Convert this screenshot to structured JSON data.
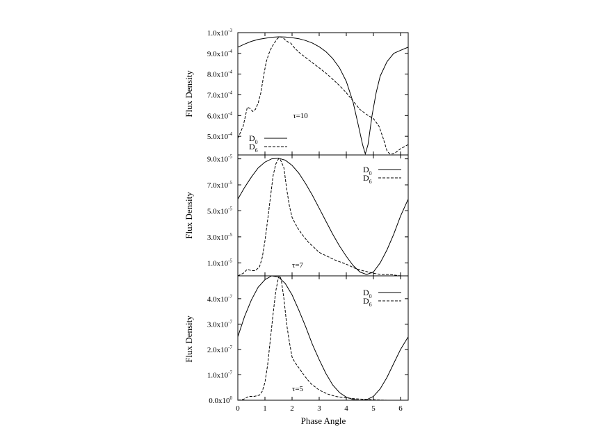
{
  "chart_data": {
    "type": "line",
    "xlabel": "Phase Angle",
    "xlim": [
      0,
      6.283
    ],
    "xticks": [
      "0",
      "1",
      "2",
      "3",
      "4",
      "5",
      "6"
    ],
    "legend": {
      "placement_top_panel": "bottom-left",
      "placement_other_panels": "top-right"
    },
    "series_styles": {
      "D0": "solid",
      "D6": "dashed"
    },
    "panels": [
      {
        "annotation": "τ=10",
        "ylabel": "Flux Density",
        "ylim": [
          0.00041,
          0.001
        ],
        "yticks": [
          {
            "value": 0.0005,
            "mant": "5.0x10",
            "exp": "-4"
          },
          {
            "value": 0.0006,
            "mant": "6.0x10",
            "exp": "-4"
          },
          {
            "value": 0.0007,
            "mant": "7.0x10",
            "exp": "-4"
          },
          {
            "value": 0.0008,
            "mant": "8.0x10",
            "exp": "-4"
          },
          {
            "value": 0.0009,
            "mant": "9.0x10",
            "exp": "-4"
          },
          {
            "value": 0.001,
            "mant": "1.0x10",
            "exp": "-3"
          }
        ],
        "series": [
          {
            "name": "D0",
            "legend_main": "D",
            "legend_sub": "0",
            "x": [
              0,
              0.25,
              0.5,
              0.75,
              1.0,
              1.25,
              1.5,
              1.75,
              2.0,
              2.25,
              2.5,
              2.75,
              3.0,
              3.25,
              3.5,
              3.75,
              4.0,
              4.25,
              4.45,
              4.6,
              4.7,
              4.8,
              4.95,
              5.1,
              5.25,
              5.5,
              5.75,
              6.0,
              6.283
            ],
            "y": [
              0.00093,
              0.000945,
              0.000958,
              0.000967,
              0.000973,
              0.000978,
              0.00098,
              0.000979,
              0.000976,
              0.000971,
              0.000962,
              0.00095,
              0.000932,
              0.000908,
              0.000875,
              0.00083,
              0.000765,
              0.000665,
              0.00055,
              0.00046,
              0.000415,
              0.00046,
              0.0006,
              0.00071,
              0.00079,
              0.00086,
              0.0009,
              0.000915,
              0.00093
            ]
          },
          {
            "name": "D6",
            "legend_main": "D",
            "legend_sub": "6",
            "x": [
              0,
              0.1,
              0.2,
              0.3,
              0.35,
              0.45,
              0.55,
              0.65,
              0.75,
              0.85,
              0.95,
              1.05,
              1.15,
              1.25,
              1.35,
              1.45,
              1.55,
              1.65,
              1.75,
              1.85,
              1.95,
              2.1,
              2.3,
              2.5,
              2.75,
              3.0,
              3.25,
              3.5,
              3.75,
              4.0,
              4.25,
              4.5,
              4.75,
              5.0,
              5.2,
              5.35,
              5.5,
              5.6,
              5.7,
              5.8,
              6.0,
              6.283
            ],
            "y": [
              0.00049,
              0.00052,
              0.00055,
              0.00061,
              0.00064,
              0.000635,
              0.00062,
              0.00063,
              0.00066,
              0.00071,
              0.00079,
              0.00086,
              0.0009,
              0.00093,
              0.00095,
              0.00097,
              0.00098,
              0.000978,
              0.000965,
              0.000955,
              0.00095,
              0.000925,
              0.0009,
              0.00088,
              0.000855,
              0.00083,
              0.000805,
              0.000775,
              0.000745,
              0.00071,
              0.00067,
              0.00063,
              0.000605,
              0.000585,
              0.00055,
              0.000495,
              0.00043,
              0.000415,
              0.000415,
              0.00042,
              0.00044,
              0.00046
            ]
          }
        ]
      },
      {
        "annotation": "τ=7",
        "ylabel": "Flux Density",
        "ylim": [
          0,
          9.3e-05
        ],
        "yticks": [
          {
            "value": 1e-05,
            "mant": "1.0x10",
            "exp": "-5"
          },
          {
            "value": 3e-05,
            "mant": "3.0x10",
            "exp": "-5"
          },
          {
            "value": 5e-05,
            "mant": "5.0x10",
            "exp": "-5"
          },
          {
            "value": 7e-05,
            "mant": "7.0x10",
            "exp": "-5"
          },
          {
            "value": 9e-05,
            "mant": "9.0x10",
            "exp": "-5"
          }
        ],
        "series": [
          {
            "name": "D0",
            "legend_main": "D",
            "legend_sub": "0",
            "x": [
              0,
              0.25,
              0.5,
              0.75,
              1.0,
              1.25,
              1.5,
              1.75,
              2.0,
              2.25,
              2.5,
              2.75,
              3.0,
              3.25,
              3.5,
              3.75,
              4.0,
              4.25,
              4.5,
              4.75,
              5.0,
              5.25,
              5.5,
              5.75,
              6.0,
              6.283
            ],
            "y": [
              5.9e-05,
              6.8e-05,
              7.6e-05,
              8.3e-05,
              8.75e-05,
              9e-05,
              9.05e-05,
              8.9e-05,
              8.5e-05,
              7.9e-05,
              7.1e-05,
              6.2e-05,
              5.2e-05,
              4.2e-05,
              3.2e-05,
              2.3e-05,
              1.5e-05,
              8e-06,
              3e-06,
              1e-06,
              3e-06,
              1e-05,
              2e-05,
              3.2e-05,
              4.6e-05,
              5.9e-05
            ]
          },
          {
            "name": "D6",
            "legend_main": "D",
            "legend_sub": "6",
            "x": [
              0,
              0.2,
              0.35,
              0.5,
              0.65,
              0.8,
              0.9,
              1.0,
              1.1,
              1.2,
              1.3,
              1.4,
              1.5,
              1.55,
              1.6,
              1.7,
              1.8,
              1.9,
              2.0,
              2.2,
              2.4,
              2.6,
              2.8,
              3.0,
              3.3,
              3.6,
              4.0,
              4.3,
              4.6,
              4.8,
              5.0,
              5.3,
              5.6,
              6.0,
              6.283
            ],
            "y": [
              0,
              2e-06,
              5e-06,
              4e-06,
              4e-06,
              7e-06,
              1.4e-05,
              2.7e-05,
              4.3e-05,
              6e-05,
              7.7e-05,
              8.6e-05,
              9e-05,
              9e-05,
              8.8e-05,
              8.3e-05,
              6.7e-05,
              5.4e-05,
              4.5e-05,
              3.7e-05,
              3.1e-05,
              2.6e-05,
              2.2e-05,
              1.8e-05,
              1.5e-05,
              1.2e-05,
              9e-06,
              6e-06,
              4e-06,
              3e-06,
              2e-06,
              1e-06,
              1e-06,
              0,
              0
            ]
          }
        ]
      },
      {
        "annotation": "τ=5",
        "ylabel": "Flux Density",
        "ylim": [
          0,
          4.9e-07
        ],
        "yticks": [
          {
            "value": 0,
            "mant": "0.0x10",
            "exp": "0"
          },
          {
            "value": 1e-07,
            "mant": "1.0x10",
            "exp": "-7"
          },
          {
            "value": 2e-07,
            "mant": "2.0x10",
            "exp": "-7"
          },
          {
            "value": 3e-07,
            "mant": "3.0x10",
            "exp": "-7"
          },
          {
            "value": 4e-07,
            "mant": "4.0x10",
            "exp": "-7"
          }
        ],
        "series": [
          {
            "name": "D0",
            "legend_main": "D",
            "legend_sub": "0",
            "x": [
              0,
              0.25,
              0.5,
              0.75,
              1.0,
              1.25,
              1.5,
              1.75,
              2.0,
              2.25,
              2.5,
              2.75,
              3.0,
              3.25,
              3.5,
              3.75,
              4.0,
              4.25,
              4.5,
              4.75,
              5.0,
              5.25,
              5.5,
              5.75,
              6.0,
              6.283
            ],
            "y": [
              2.5e-07,
              3.3e-07,
              3.95e-07,
              4.45e-07,
              4.75e-07,
              4.9e-07,
              4.85e-07,
              4.6e-07,
              4.15e-07,
              3.55e-07,
              2.9e-07,
              2.2e-07,
              1.6e-07,
              1.05e-07,
              6e-08,
              3e-08,
              1.2e-08,
              3e-09,
              0,
              2e-09,
              1.5e-08,
              4.5e-08,
              9e-08,
              1.45e-07,
              2e-07,
              2.5e-07
            ]
          },
          {
            "name": "D6",
            "legend_main": "D",
            "legend_sub": "6",
            "x": [
              0,
              0.2,
              0.4,
              0.6,
              0.8,
              0.9,
              1.0,
              1.1,
              1.2,
              1.3,
              1.4,
              1.5,
              1.55,
              1.6,
              1.7,
              1.8,
              1.9,
              2.0,
              2.1,
              2.3,
              2.5,
              2.7,
              3.0,
              3.3,
              3.6,
              4.0,
              4.3,
              4.6,
              5.0,
              5.5,
              6.0,
              6.283
            ],
            "y": [
              0,
              3e-09,
              1.5e-08,
              1.5e-08,
              2e-08,
              3.5e-08,
              7e-08,
              1.4e-07,
              2.4e-07,
              3.4e-07,
              4.3e-07,
              4.85e-07,
              4.9e-07,
              4.75e-07,
              4e-07,
              3e-07,
              2.3e-07,
              1.7e-07,
              1.5e-07,
              1.2e-07,
              9e-08,
              6.5e-08,
              4e-08,
              2.5e-08,
              1.5e-08,
              9e-09,
              6e-09,
              4e-09,
              2e-09,
              0,
              0,
              0
            ]
          }
        ]
      }
    ]
  }
}
